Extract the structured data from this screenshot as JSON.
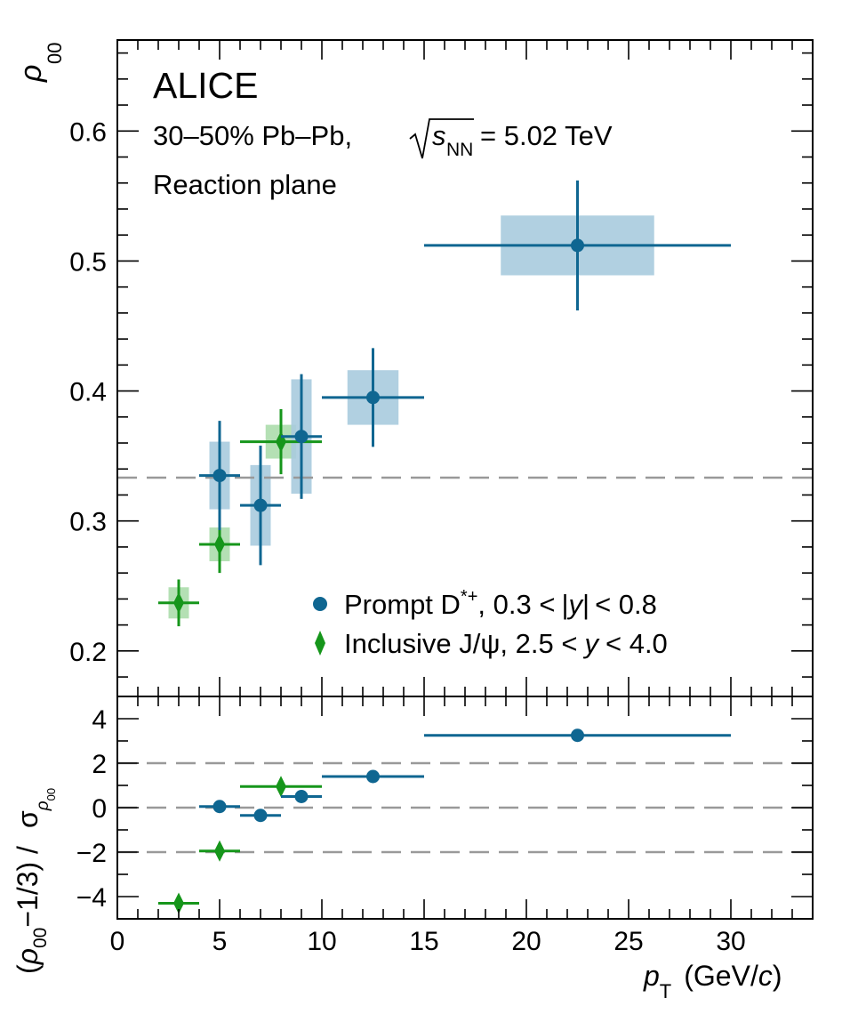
{
  "chart_data": [
    {
      "type": "scatter",
      "panel": "top",
      "experiment_label": "ALICE",
      "collision_label": "30–50% Pb–Pb,",
      "energy_symbol": "s",
      "energy_subscript": "NN",
      "energy_value": "= 5.02 TeV",
      "method_label": "Reaction plane",
      "ylabel": "ρ",
      "ylabel_sub": "00",
      "xlim": [
        0,
        34
      ],
      "ylim": [
        0.165,
        0.67
      ],
      "yticks": [
        0.2,
        0.3,
        0.4,
        0.5,
        0.6
      ],
      "ytick_labels": [
        "0.2",
        "0.3",
        "0.4",
        "0.5",
        "0.6"
      ],
      "reference_line": 0.3333,
      "colors": {
        "dstar": "#0f6691",
        "dstar_syst": "#a9cbde",
        "jpsi": "#16961b",
        "jpsi_syst": "#a7dba7",
        "reference": "#999999"
      },
      "legend": [
        {
          "name": "Prompt D*+, 0.3 < |y| < 0.8",
          "text_prefix": "Prompt D",
          "text_sup": "*+",
          "text_rest": ", 0.3 <",
          "text_y": "y",
          "text_end": "< 0.8",
          "marker": "circle"
        },
        {
          "name": "Inclusive J/ψ, 2.5 < y < 4.0",
          "text_prefix": "Inclusive J/ψ, 2.5 <",
          "text_y": "y",
          "text_end": "< 4.0",
          "marker": "diamond"
        }
      ],
      "series": [
        {
          "name": "Prompt D*+",
          "marker": "circle",
          "points": [
            {
              "x": 5.0,
              "xlo": 4.0,
              "xhi": 6.0,
              "y": 0.335,
              "stat": 0.042,
              "syst": 0.026,
              "box_halfwidth": 0.5
            },
            {
              "x": 7.0,
              "xlo": 6.0,
              "xhi": 8.0,
              "y": 0.312,
              "stat": 0.046,
              "syst": 0.031,
              "box_halfwidth": 0.5
            },
            {
              "x": 9.0,
              "xlo": 8.0,
              "xhi": 10.0,
              "y": 0.365,
              "stat": 0.048,
              "syst": 0.044,
              "box_halfwidth": 0.5
            },
            {
              "x": 12.5,
              "xlo": 10.0,
              "xhi": 15.0,
              "y": 0.395,
              "stat": 0.038,
              "syst": 0.021,
              "box_halfwidth": 1.25
            },
            {
              "x": 22.5,
              "xlo": 15.0,
              "xhi": 30.0,
              "y": 0.512,
              "stat": 0.05,
              "syst": 0.023,
              "box_halfwidth": 3.75
            }
          ]
        },
        {
          "name": "Inclusive J/ψ",
          "marker": "diamond",
          "points": [
            {
              "x": 3.0,
              "xlo": 2.0,
              "xhi": 4.0,
              "y": 0.237,
              "stat": 0.018,
              "syst": 0.012,
              "box_halfwidth": 0.5
            },
            {
              "x": 5.0,
              "xlo": 4.0,
              "xhi": 6.0,
              "y": 0.282,
              "stat": 0.022,
              "syst": 0.013,
              "box_halfwidth": 0.5
            },
            {
              "x": 8.0,
              "xlo": 6.0,
              "xhi": 10.0,
              "y": 0.361,
              "stat": 0.025,
              "syst": 0.013,
              "box_halfwidth": 0.75
            }
          ]
        }
      ]
    },
    {
      "type": "scatter",
      "panel": "bottom",
      "ylabel": "(ρ₀₀−1/3) / σ",
      "ylabel_parts": {
        "open": "(",
        "rho": "ρ",
        "sub00": "00",
        "rest": "−1/3) /",
        "sigma": "σ",
        "sub_rho": "ρ",
        "sub_rho_00": "00"
      },
      "xlabel": "p_T (GeV/c)",
      "xlabel_parts": {
        "p": "p",
        "sub": "T",
        "open": "(GeV/",
        "c": "c",
        "close": ")"
      },
      "xlim": [
        0,
        34
      ],
      "ylim": [
        -5.0,
        5.0
      ],
      "xticks": [
        0,
        5,
        10,
        15,
        20,
        25,
        30
      ],
      "xtick_labels": [
        "0",
        "5",
        "10",
        "15",
        "20",
        "25",
        "30"
      ],
      "yticks": [
        -4,
        -2,
        0,
        2,
        4
      ],
      "ytick_labels": [
        "−4",
        "−2",
        "0",
        "2",
        "4"
      ],
      "reference_lines": [
        -2,
        0,
        2
      ],
      "series": [
        {
          "name": "Prompt D*+",
          "marker": "circle",
          "points": [
            {
              "x": 5.0,
              "xlo": 4.0,
              "xhi": 6.0,
              "y": 0.05
            },
            {
              "x": 7.0,
              "xlo": 6.0,
              "xhi": 8.0,
              "y": -0.35
            },
            {
              "x": 9.0,
              "xlo": 8.0,
              "xhi": 10.0,
              "y": 0.5
            },
            {
              "x": 12.5,
              "xlo": 10.0,
              "xhi": 15.0,
              "y": 1.4
            },
            {
              "x": 22.5,
              "xlo": 15.0,
              "xhi": 30.0,
              "y": 3.25
            }
          ]
        },
        {
          "name": "Inclusive J/ψ",
          "marker": "diamond",
          "points": [
            {
              "x": 3.0,
              "xlo": 2.0,
              "xhi": 4.0,
              "y": -4.3
            },
            {
              "x": 5.0,
              "xlo": 4.0,
              "xhi": 6.0,
              "y": -1.95
            },
            {
              "x": 8.0,
              "xlo": 6.0,
              "xhi": 10.0,
              "y": 0.95
            }
          ]
        }
      ]
    }
  ]
}
